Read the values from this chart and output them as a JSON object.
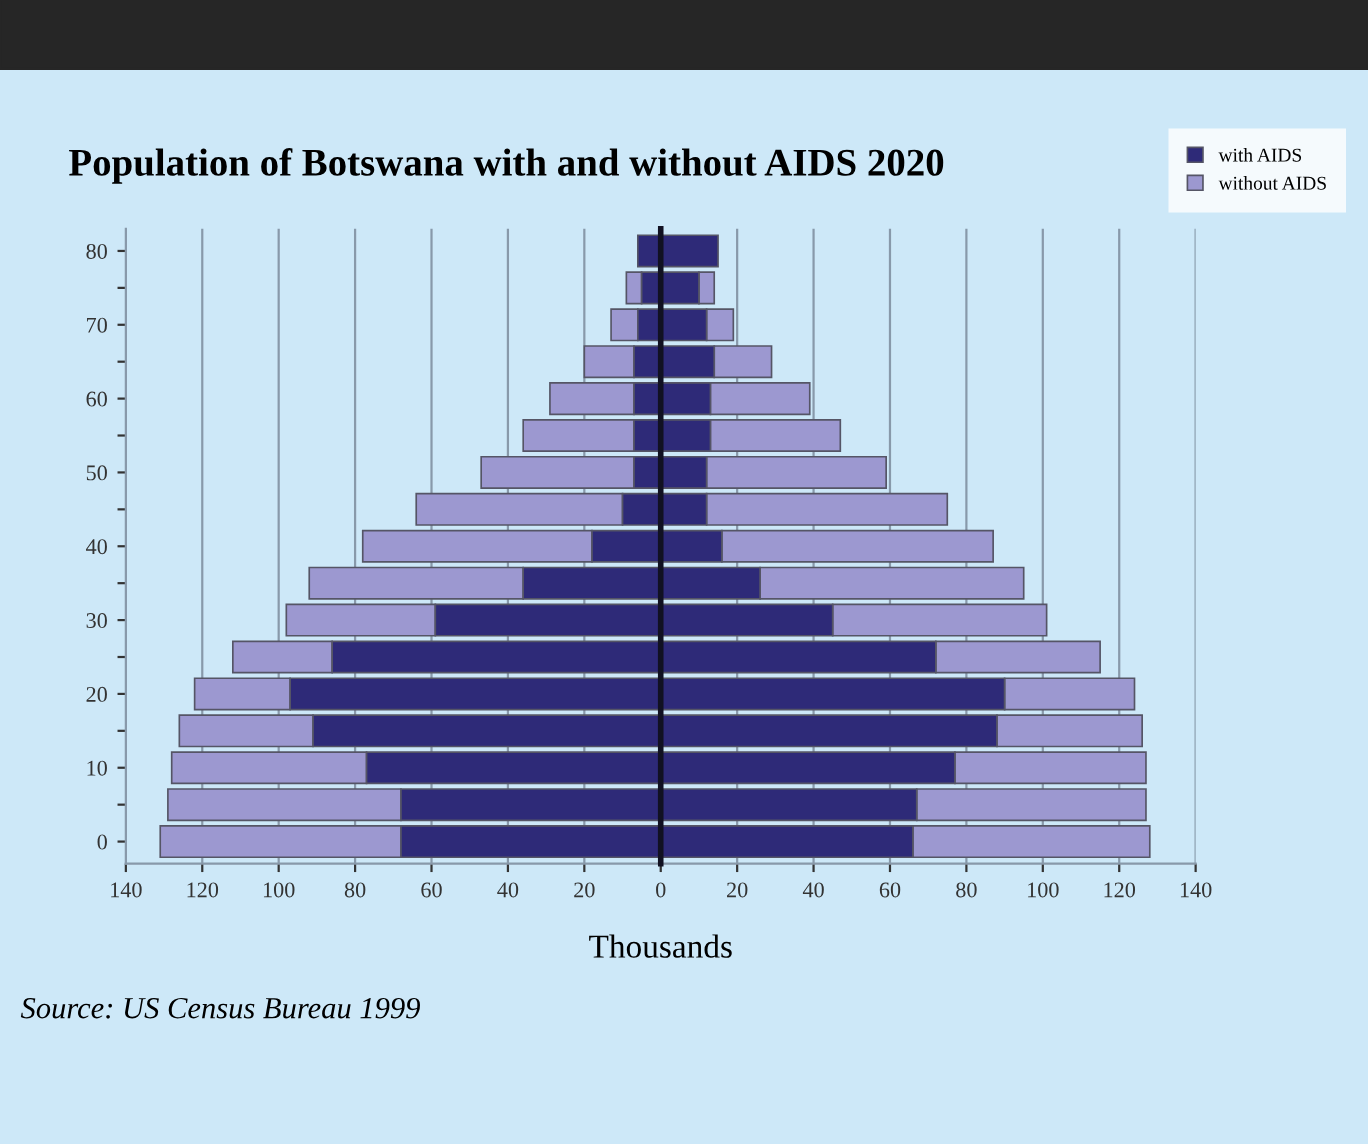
{
  "chart_data": [
    {
      "type": "bar",
      "orientation": "horizontal",
      "title": "Population of Botswana with and without AIDS 2020",
      "xlabel": "Thousands",
      "annotations": [
        "Source: US Census Bureau 1999"
      ],
      "categories": [
        "80",
        null,
        "70",
        null,
        "60",
        null,
        "50",
        null,
        "40",
        null,
        "30",
        null,
        "20",
        null,
        "10",
        null,
        "0"
      ],
      "series": [
        {
          "name": "with AIDS",
          "color": "#2e2a78",
          "values": [
            6,
            5,
            6,
            7,
            7,
            7,
            7,
            10,
            18,
            36,
            59,
            86,
            97,
            91,
            77,
            68,
            68
          ]
        },
        {
          "name": "without AIDS",
          "color": "#9c98d0",
          "values": [
            null,
            4,
            7,
            13,
            22,
            29,
            40,
            54,
            60,
            56,
            39,
            26,
            25,
            35,
            51,
            61,
            63
          ]
        }
      ],
      "stacked": true,
      "xlim": [
        140,
        0
      ],
      "xticks": [
        140,
        120,
        100,
        80,
        60,
        40,
        20
      ],
      "grid": "x",
      "legend": "top right"
    },
    {
      "type": "bar",
      "orientation": "horizontal",
      "categories": [
        "80",
        null,
        "70",
        null,
        "60",
        null,
        "50",
        null,
        "40",
        null,
        "30",
        null,
        "20",
        null,
        "10",
        null,
        "0"
      ],
      "series": [
        {
          "color": "#2e2a78",
          "values": [
            15,
            10,
            12,
            14,
            13,
            13,
            12,
            12,
            16,
            26,
            45,
            72,
            90,
            88,
            77,
            67,
            66
          ]
        },
        {
          "color": "#9c98d0",
          "values": [
            null,
            4,
            7,
            15,
            26,
            34,
            47,
            63,
            71,
            69,
            56,
            43,
            34,
            38,
            50,
            60,
            62
          ]
        }
      ],
      "stacked": true,
      "xlim": [
        0,
        140
      ],
      "xticks": [
        0,
        20,
        40,
        60,
        80,
        100,
        120,
        140
      ],
      "grid": "x",
      "tick_labels": "x"
    }
  ]
}
